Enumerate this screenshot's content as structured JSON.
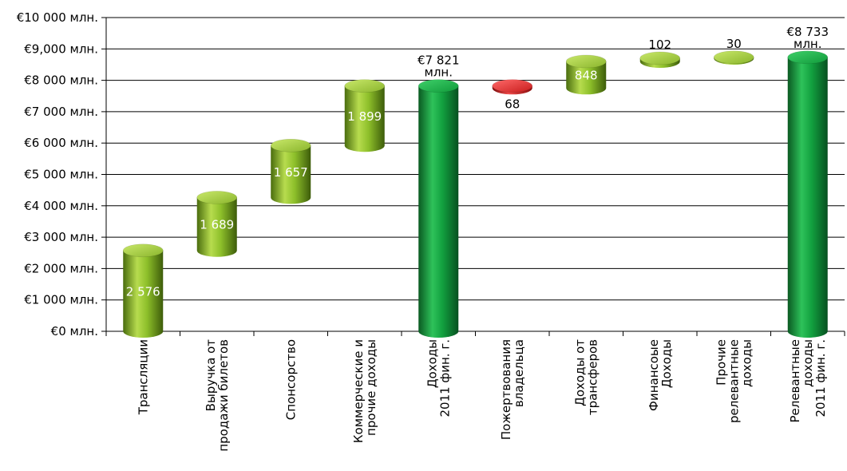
{
  "chart_data": {
    "type": "bar",
    "subtype": "waterfall",
    "title": "",
    "xlabel": "",
    "ylabel": "",
    "ylim": [
      0,
      10000
    ],
    "grid": true,
    "legend": "none",
    "yticks": [
      {
        "value": 0,
        "label": "€0 млн."
      },
      {
        "value": 1000,
        "label": "€1 000 млн."
      },
      {
        "value": 2000,
        "label": "€2 000 млн."
      },
      {
        "value": 3000,
        "label": "€3 000 млн."
      },
      {
        "value": 4000,
        "label": "€4 000 млн."
      },
      {
        "value": 5000,
        "label": "€5 000 млн."
      },
      {
        "value": 6000,
        "label": "€6 000 млн."
      },
      {
        "value": 7000,
        "label": "€7 000 млн."
      },
      {
        "value": 8000,
        "label": "€8 000 млн."
      },
      {
        "value": 9000,
        "label": "€9,000 млн."
      },
      {
        "value": 10000,
        "label": "€10 000 млн."
      }
    ],
    "categories": [
      {
        "lines": [
          "Трансляции"
        ],
        "start": 0,
        "end": 2576,
        "value": 2576,
        "label": [
          "2 576"
        ],
        "kind": "increase",
        "label_pos": "inside"
      },
      {
        "lines": [
          "Выручка от",
          "продажи билетов"
        ],
        "start": 2576,
        "end": 4265,
        "value": 1689,
        "label": [
          "1 689"
        ],
        "kind": "increase",
        "label_pos": "inside"
      },
      {
        "lines": [
          "Спонсорство"
        ],
        "start": 4265,
        "end": 5922,
        "value": 1657,
        "label": [
          "1 657"
        ],
        "kind": "increase",
        "label_pos": "inside"
      },
      {
        "lines": [
          "Коммерческие и",
          "прочие доходы"
        ],
        "start": 5922,
        "end": 7821,
        "value": 1899,
        "label": [
          "1 899"
        ],
        "kind": "increase",
        "label_pos": "inside"
      },
      {
        "lines": [
          "Доходы",
          "2011 фин. г."
        ],
        "start": 0,
        "end": 7821,
        "value": 7821,
        "label": [
          "€7 821",
          "млн."
        ],
        "kind": "total",
        "label_pos": "above"
      },
      {
        "lines": [
          "Пожертвования",
          "владельца"
        ],
        "start": 7753,
        "end": 7821,
        "value": -68,
        "label": [
          "68"
        ],
        "kind": "decrease",
        "label_pos": "below"
      },
      {
        "lines": [
          "Доходы от",
          "трансферов"
        ],
        "start": 7753,
        "end": 8601,
        "value": 848,
        "label": [
          "848"
        ],
        "kind": "increase",
        "label_pos": "inside"
      },
      {
        "lines": [
          "Финансоые",
          "Доходы"
        ],
        "start": 8601,
        "end": 8703,
        "value": 102,
        "label": [
          "102"
        ],
        "kind": "increase",
        "label_pos": "above"
      },
      {
        "lines": [
          "Прочие",
          "релевантные",
          "доходы"
        ],
        "start": 8703,
        "end": 8733,
        "value": 30,
        "label": [
          "30"
        ],
        "kind": "increase",
        "label_pos": "above"
      },
      {
        "lines": [
          "Релевантные",
          "доходы",
          "2011 фин. г."
        ],
        "start": 0,
        "end": 8733,
        "value": 8733,
        "label": [
          "€8 733",
          "млн."
        ],
        "kind": "total",
        "label_pos": "above"
      }
    ],
    "colors": {
      "increase": "#8dbf2a",
      "total": "#129a3c",
      "decrease": "#d81e1e",
      "grid": "#000000"
    }
  }
}
